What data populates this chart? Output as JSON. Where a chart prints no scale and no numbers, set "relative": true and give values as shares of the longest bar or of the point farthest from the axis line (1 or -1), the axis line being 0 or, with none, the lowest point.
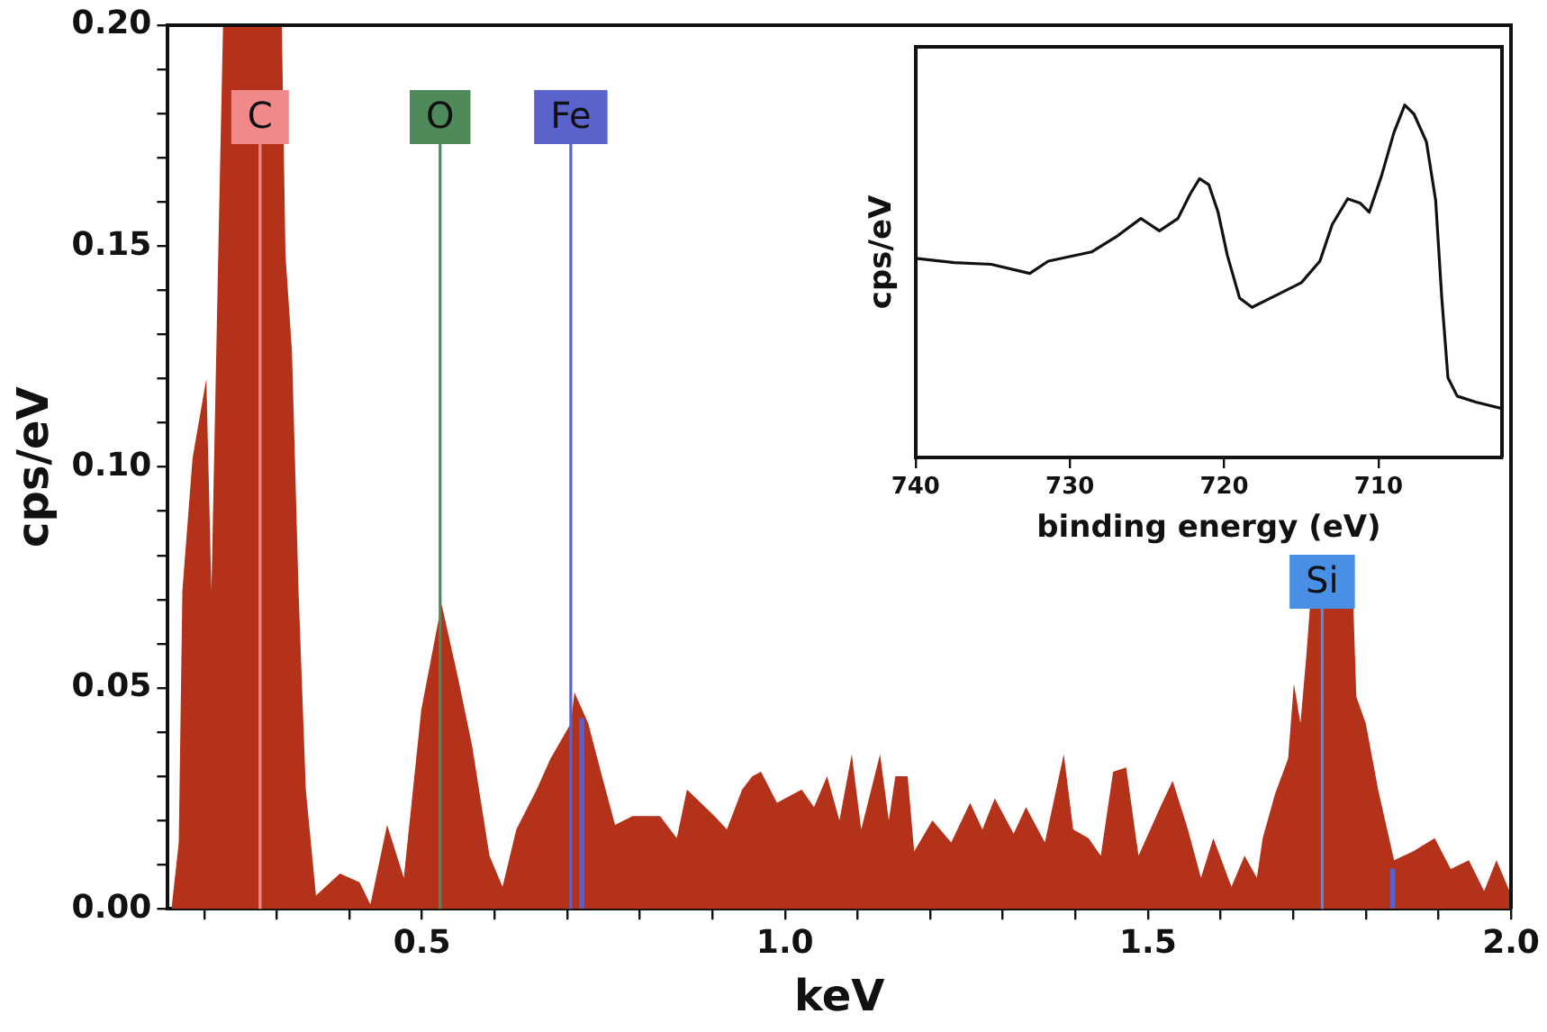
{
  "chart_data": [
    {
      "type": "area",
      "xlabel": "keV",
      "ylabel": "cps/eV",
      "legend": false,
      "grid": false,
      "x": [
        0.155,
        0.165,
        0.17,
        0.184,
        0.203,
        0.21,
        0.221,
        0.226,
        0.245,
        0.307,
        0.312,
        0.321,
        0.33,
        0.34,
        0.354,
        0.387,
        0.414,
        0.429,
        0.452,
        0.475,
        0.499,
        0.527,
        0.55,
        0.569,
        0.593,
        0.611,
        0.63,
        0.658,
        0.677,
        0.705,
        0.71,
        0.729,
        0.748,
        0.766,
        0.79,
        0.828,
        0.851,
        0.865,
        0.903,
        0.92,
        0.941,
        0.955,
        0.967,
        0.989,
        1.023,
        1.04,
        1.058,
        1.075,
        1.092,
        1.105,
        1.131,
        1.143,
        1.152,
        1.169,
        1.178,
        1.203,
        1.229,
        1.255,
        1.272,
        1.289,
        1.315,
        1.332,
        1.358,
        1.384,
        1.397,
        1.418,
        1.435,
        1.452,
        1.47,
        1.487,
        1.517,
        1.534,
        1.555,
        1.573,
        1.59,
        1.615,
        1.633,
        1.65,
        1.658,
        1.675,
        1.693,
        1.701,
        1.71,
        1.718,
        1.723,
        1.744,
        1.783,
        1.787,
        1.8,
        1.817,
        1.839,
        1.865,
        1.895,
        1.917,
        1.942,
        1.963,
        1.98,
        1.998
      ],
      "series": [
        {
          "color": "#b5321a",
          "values": [
            0,
            0.015,
            0.072,
            0.102,
            0.12,
            0.072,
            0.161,
            0.2,
            0.2,
            0.2,
            0.148,
            0.126,
            0.072,
            0.027,
            0.003,
            0.008,
            0.006,
            0.001,
            0.019,
            0.007,
            0.045,
            0.069,
            0.052,
            0.037,
            0.012,
            0.005,
            0.018,
            0.027,
            0.034,
            0.042,
            0.049,
            0.042,
            0.03,
            0.019,
            0.021,
            0.021,
            0.016,
            0.027,
            0.021,
            0.018,
            0.027,
            0.03,
            0.031,
            0.024,
            0.027,
            0.023,
            0.03,
            0.02,
            0.035,
            0.018,
            0.035,
            0.02,
            0.03,
            0.03,
            0.013,
            0.02,
            0.015,
            0.024,
            0.018,
            0.025,
            0.017,
            0.023,
            0.015,
            0.035,
            0.018,
            0.016,
            0.012,
            0.031,
            0.032,
            0.012,
            0.023,
            0.029,
            0.018,
            0.007,
            0.016,
            0.005,
            0.012,
            0.007,
            0.016,
            0.026,
            0.034,
            0.051,
            0.042,
            0.057,
            0.068,
            0.068,
            0.068,
            0.048,
            0.042,
            0.027,
            0.011,
            0.013,
            0.016,
            0.009,
            0.011,
            0.004,
            0.011,
            0.004
          ]
        },
        {
          "type": "bar",
          "x": [
            0.72,
            1.837
          ],
          "color": "#5a62cc",
          "values": [
            0.043,
            0.009
          ]
        }
      ],
      "xlim": [
        0.15,
        2.0
      ],
      "xticks": [
        {
          "value": 0.2,
          "label": null
        },
        {
          "value": 0.3,
          "label": null
        },
        {
          "value": 0.4,
          "label": null
        },
        {
          "value": 0.5,
          "label": "0.5"
        },
        {
          "value": 0.6,
          "label": null
        },
        {
          "value": 0.7,
          "label": null
        },
        {
          "value": 0.8,
          "label": null
        },
        {
          "value": 0.9,
          "label": null
        },
        {
          "value": 1.0,
          "label": "1.0"
        },
        {
          "value": 1.1,
          "label": null
        },
        {
          "value": 1.2,
          "label": null
        },
        {
          "value": 1.3,
          "label": null
        },
        {
          "value": 1.4,
          "label": null
        },
        {
          "value": 1.5,
          "label": "1.5"
        },
        {
          "value": 1.6,
          "label": null
        },
        {
          "value": 1.7,
          "label": null
        },
        {
          "value": 1.8,
          "label": null
        },
        {
          "value": 1.9,
          "label": null
        },
        {
          "value": 2.0,
          "label": "2.0"
        }
      ],
      "ylim": [
        0,
        0.2
      ],
      "yticks": [
        {
          "value": 0,
          "label": "0.00"
        },
        {
          "value": 0.01,
          "label": null
        },
        {
          "value": 0.02,
          "label": null
        },
        {
          "value": 0.03,
          "label": null
        },
        {
          "value": 0.04,
          "label": null
        },
        {
          "value": 0.05,
          "label": "0.05"
        },
        {
          "value": 0.06,
          "label": null
        },
        {
          "value": 0.07,
          "label": null
        },
        {
          "value": 0.08,
          "label": null
        },
        {
          "value": 0.09,
          "label": null
        },
        {
          "value": 0.1,
          "label": "0.10"
        },
        {
          "value": 0.11,
          "label": null
        },
        {
          "value": 0.12,
          "label": null
        },
        {
          "value": 0.13,
          "label": null
        },
        {
          "value": 0.14,
          "label": null
        },
        {
          "value": 0.15,
          "label": "0.15"
        },
        {
          "value": 0.16,
          "label": null
        },
        {
          "value": 0.17,
          "label": null
        },
        {
          "value": 0.18,
          "label": null
        },
        {
          "value": 0.19,
          "label": null
        },
        {
          "value": 0.2,
          "label": "0.20"
        }
      ],
      "ref_lines": [
        {
          "axis": "x",
          "value": 0.277,
          "label": "C",
          "color": "#f08a8a"
        },
        {
          "axis": "x",
          "value": 0.525,
          "label": "O",
          "color": "#4f8a5a"
        },
        {
          "axis": "x",
          "value": 0.705,
          "label": "Fe",
          "color": "#5a62cc"
        },
        {
          "axis": "x",
          "value": 1.74,
          "label": "Si",
          "color": "#4a8fe6"
        }
      ]
    },
    {
      "type": "line",
      "xlabel": "binding energy (eV)",
      "ylabel": "cps/eV",
      "legend": false,
      "grid": false,
      "relative": true,
      "tick_labels": "x",
      "x": [
        740,
        737.5,
        735.1,
        732.6,
        731.4,
        728.6,
        727.0,
        725.4,
        724.2,
        723.0,
        722.2,
        721.6,
        721.0,
        720.4,
        719.8,
        719.0,
        718.2,
        716.6,
        715.0,
        713.8,
        713.0,
        712.0,
        711.2,
        710.6,
        709.8,
        709.0,
        708.3,
        707.7,
        706.9,
        706.3,
        705.9,
        705.5,
        704.9,
        703.7,
        702.0
      ],
      "series": [
        {
          "color": "#111111",
          "values": [
            0.565,
            0.553,
            0.548,
            0.522,
            0.557,
            0.583,
            0.626,
            0.678,
            0.643,
            0.678,
            0.748,
            0.791,
            0.774,
            0.696,
            0.574,
            0.452,
            0.426,
            0.461,
            0.496,
            0.557,
            0.661,
            0.734,
            0.722,
            0.696,
            0.8,
            0.922,
            1.0,
            0.974,
            0.896,
            0.73,
            0.452,
            0.226,
            0.174,
            0.157,
            0.139
          ]
        }
      ],
      "xlim": [
        740,
        702
      ],
      "xticks": [
        740,
        730,
        720,
        710
      ]
    }
  ]
}
